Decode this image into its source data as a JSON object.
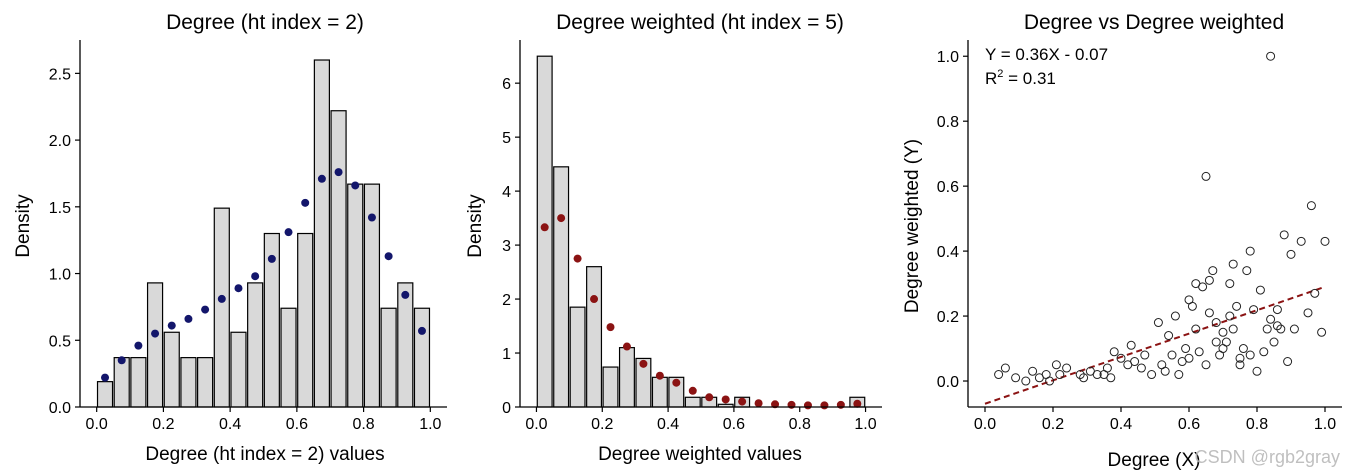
{
  "chart_data": [
    {
      "type": "bar",
      "title": "Degree (ht index = 2)",
      "xlabel": "Degree (ht index = 2) values",
      "ylabel": "Density",
      "xlim": [
        -0.05,
        1.05
      ],
      "ylim": [
        0,
        2.75
      ],
      "xticks": [
        "0.0",
        "0.2",
        "0.4",
        "0.6",
        "0.8",
        "1.0"
      ],
      "xtick_values": [
        0,
        0.2,
        0.4,
        0.6,
        0.8,
        1.0
      ],
      "yticks": [
        "0.0",
        "0.5",
        "1.0",
        "1.5",
        "2.0",
        "2.5"
      ],
      "ytick_values": [
        0,
        0.5,
        1.0,
        1.5,
        2.0,
        2.5
      ],
      "bar_width": 0.045,
      "bar_centers": [
        0.025,
        0.075,
        0.125,
        0.175,
        0.225,
        0.275,
        0.325,
        0.375,
        0.425,
        0.475,
        0.525,
        0.575,
        0.625,
        0.675,
        0.725,
        0.775,
        0.825,
        0.875,
        0.925,
        0.975
      ],
      "values": [
        0.19,
        0.37,
        0.37,
        0.93,
        0.56,
        0.37,
        0.37,
        1.49,
        0.56,
        0.93,
        1.3,
        0.74,
        1.3,
        2.6,
        2.22,
        1.67,
        1.67,
        0.74,
        0.93,
        0.74
      ],
      "points": {
        "x": [
          0.025,
          0.075,
          0.125,
          0.175,
          0.225,
          0.275,
          0.325,
          0.375,
          0.425,
          0.475,
          0.525,
          0.575,
          0.625,
          0.675,
          0.725,
          0.775,
          0.825,
          0.875,
          0.925,
          0.975
        ],
        "y": [
          0.22,
          0.35,
          0.46,
          0.55,
          0.61,
          0.66,
          0.73,
          0.81,
          0.89,
          0.98,
          1.11,
          1.31,
          1.53,
          1.71,
          1.76,
          1.66,
          1.42,
          1.13,
          0.84,
          0.57
        ],
        "color": "#13166b"
      },
      "bar_color": "#d9d9d9"
    },
    {
      "type": "bar",
      "title": "Degree weighted (ht index = 5)",
      "xlabel": "Degree weighted values",
      "ylabel": "Density",
      "xlim": [
        -0.05,
        1.05
      ],
      "ylim": [
        0,
        6.8
      ],
      "xticks": [
        "0.0",
        "0.2",
        "0.4",
        "0.6",
        "0.8",
        "1.0"
      ],
      "xtick_values": [
        0,
        0.2,
        0.4,
        0.6,
        0.8,
        1.0
      ],
      "yticks": [
        "0",
        "1",
        "2",
        "3",
        "4",
        "5",
        "6"
      ],
      "ytick_values": [
        0,
        1,
        2,
        3,
        4,
        5,
        6
      ],
      "bar_width": 0.045,
      "bar_centers": [
        0.025,
        0.075,
        0.125,
        0.175,
        0.225,
        0.275,
        0.325,
        0.375,
        0.425,
        0.475,
        0.525,
        0.575,
        0.625,
        0.975
      ],
      "values": [
        6.5,
        4.45,
        1.85,
        2.6,
        0.74,
        1.1,
        0.9,
        0.55,
        0.55,
        0.18,
        0.18,
        0.05,
        0.18,
        0.18
      ],
      "points": {
        "x": [
          0.025,
          0.075,
          0.125,
          0.175,
          0.225,
          0.275,
          0.325,
          0.375,
          0.425,
          0.475,
          0.525,
          0.575,
          0.625,
          0.675,
          0.725,
          0.775,
          0.825,
          0.875,
          0.925,
          0.975
        ],
        "y": [
          3.33,
          3.5,
          2.75,
          2.0,
          1.48,
          1.12,
          0.8,
          0.58,
          0.45,
          0.3,
          0.18,
          0.14,
          0.1,
          0.07,
          0.05,
          0.04,
          0.03,
          0.03,
          0.04,
          0.06
        ],
        "color": "#8b1313"
      },
      "bar_color": "#d9d9d9"
    },
    {
      "type": "scatter",
      "title": "Degree vs Degree weighted",
      "xlabel": "Degree (X)",
      "ylabel": "Degree weighted (Y)",
      "xlim": [
        -0.05,
        1.05
      ],
      "ylim": [
        -0.08,
        1.05
      ],
      "xticks": [
        "0.0",
        "0.2",
        "0.4",
        "0.6",
        "0.8",
        "1.0"
      ],
      "xtick_values": [
        0,
        0.2,
        0.4,
        0.6,
        0.8,
        1.0
      ],
      "yticks": [
        "0.0",
        "0.2",
        "0.4",
        "0.6",
        "0.8",
        "1.0"
      ],
      "ytick_values": [
        0,
        0.2,
        0.4,
        0.6,
        0.8,
        1.0
      ],
      "equation": "Y = 0.36X - 0.07",
      "r2_label": "R",
      "r2_value": " = 0.31",
      "fit_line": {
        "slope": 0.36,
        "intercept": -0.07,
        "x": [
          0,
          1.0
        ],
        "color": "#8b1313"
      },
      "x": [
        0.04,
        0.06,
        0.09,
        0.12,
        0.14,
        0.16,
        0.18,
        0.19,
        0.21,
        0.22,
        0.24,
        0.28,
        0.29,
        0.31,
        0.33,
        0.35,
        0.36,
        0.37,
        0.38,
        0.4,
        0.42,
        0.43,
        0.44,
        0.46,
        0.47,
        0.49,
        0.51,
        0.52,
        0.53,
        0.54,
        0.55,
        0.56,
        0.57,
        0.58,
        0.59,
        0.6,
        0.61,
        0.62,
        0.62,
        0.63,
        0.64,
        0.65,
        0.66,
        0.67,
        0.68,
        0.69,
        0.7,
        0.71,
        0.72,
        0.73,
        0.74,
        0.75,
        0.76,
        0.77,
        0.78,
        0.79,
        0.8,
        0.81,
        0.82,
        0.83,
        0.84,
        0.85,
        0.86,
        0.87,
        0.88,
        0.89,
        0.9,
        0.91,
        0.93,
        0.95,
        0.96,
        0.97,
        0.99,
        1.0,
        0.65,
        0.84,
        0.73,
        0.6,
        0.7,
        0.78,
        0.68,
        0.75,
        0.66,
        0.72,
        0.86
      ],
      "y": [
        0.02,
        0.04,
        0.01,
        0.0,
        0.03,
        0.01,
        0.02,
        0.0,
        0.05,
        0.02,
        0.04,
        0.02,
        0.01,
        0.03,
        0.02,
        0.02,
        0.04,
        0.01,
        0.09,
        0.07,
        0.05,
        0.11,
        0.06,
        0.04,
        0.08,
        0.02,
        0.18,
        0.05,
        0.03,
        0.14,
        0.08,
        0.2,
        0.02,
        0.06,
        0.1,
        0.25,
        0.23,
        0.16,
        0.3,
        0.09,
        0.29,
        0.05,
        0.31,
        0.34,
        0.18,
        0.08,
        0.1,
        0.12,
        0.2,
        0.16,
        0.23,
        0.07,
        0.1,
        0.34,
        0.08,
        0.22,
        0.03,
        0.28,
        0.09,
        0.16,
        0.19,
        0.12,
        0.22,
        0.16,
        0.45,
        0.06,
        0.39,
        0.16,
        0.43,
        0.21,
        0.54,
        0.27,
        0.15,
        0.43,
        0.63,
        1.0,
        0.36,
        0.07,
        0.15,
        0.4,
        0.12,
        0.05,
        0.21,
        0.3,
        0.17
      ],
      "marker": "open-circle"
    }
  ],
  "watermark": "CSDN @rgb2gray"
}
